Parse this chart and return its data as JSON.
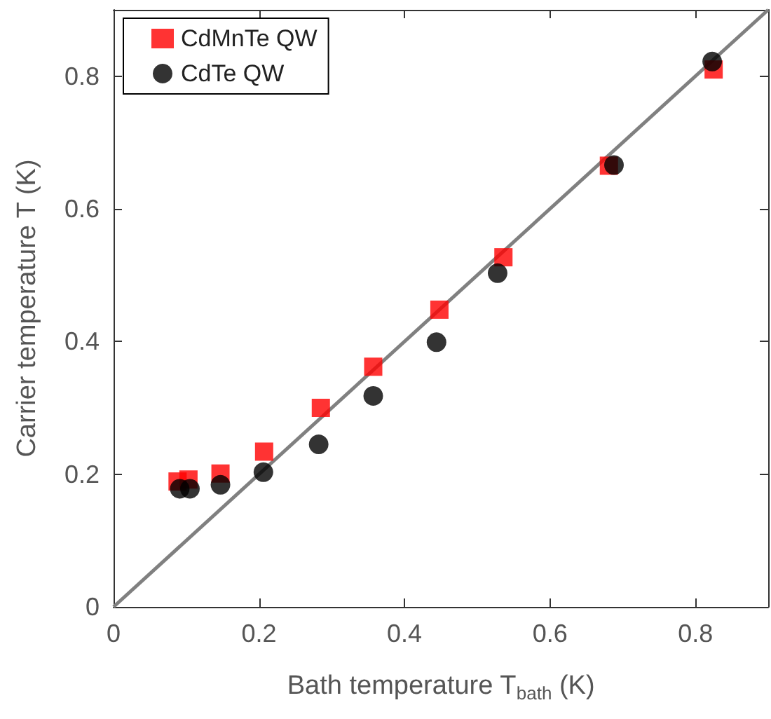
{
  "chart_data": {
    "type": "scatter",
    "xlabel": "Bath temperature T$_{bath}$ (K)",
    "ylabel": "Carrier temperature T (K)",
    "xlim": [
      0,
      0.9
    ],
    "ylim": [
      0,
      0.9
    ],
    "xticks": [
      0,
      0.2,
      0.4,
      0.6,
      0.8
    ],
    "yticks": [
      0,
      0.2,
      0.4,
      0.6,
      0.8
    ],
    "grid": false,
    "legend": "top left",
    "series": [
      {
        "name": "CdMnTe QW",
        "color": "#ff0000",
        "marker": "square",
        "x": [
          0.088,
          0.103,
          0.147,
          0.207,
          0.285,
          0.357,
          0.448,
          0.536,
          0.681,
          0.825
        ],
        "values": [
          0.189,
          0.192,
          0.201,
          0.234,
          0.3,
          0.362,
          0.448,
          0.527,
          0.665,
          0.81
        ]
      },
      {
        "name": "CdTe QW",
        "color": "#000000",
        "marker": "circle",
        "x": [
          0.091,
          0.105,
          0.147,
          0.206,
          0.282,
          0.357,
          0.444,
          0.528,
          0.688,
          0.823
        ],
        "values": [
          0.178,
          0.178,
          0.184,
          0.203,
          0.245,
          0.318,
          0.399,
          0.503,
          0.666,
          0.822
        ]
      },
      {
        "type": "line",
        "color": "#808080",
        "marker": "none",
        "line_style": "solid",
        "x": [
          0,
          0.9
        ],
        "values": [
          0,
          0.9
        ]
      }
    ]
  }
}
